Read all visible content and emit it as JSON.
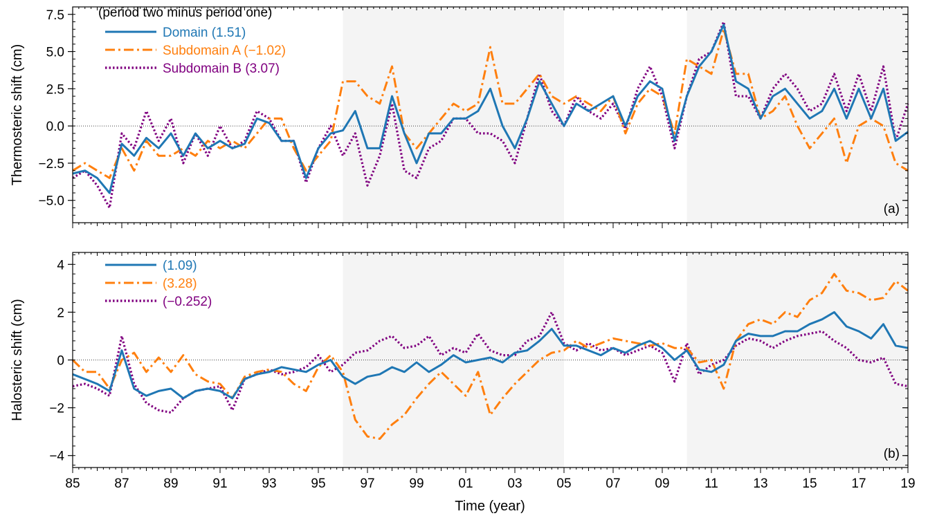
{
  "figure": {
    "xlabel": "Time (year)"
  },
  "colors": {
    "domain": "#1f77b4",
    "sub_a": "#ff7f0e",
    "sub_b": "#800080",
    "shade": "#f4f4f4"
  },
  "chart_data": [
    {
      "id": "a",
      "type": "line",
      "panel_label": "(a)",
      "legend_title": "(period two minus period one)",
      "ylabel": "Thermosteric shift (cm)",
      "xlim": [
        1985,
        2019
      ],
      "ylim": [
        -6.5,
        8.0
      ],
      "yticks": [
        -5.0,
        -2.5,
        0.0,
        2.5,
        5.0,
        7.5
      ],
      "ytick_labels": [
        "−5.0",
        "−2.5",
        "0.0",
        "2.5",
        "5.0",
        "7.5"
      ],
      "shaded_periods": [
        [
          1996,
          2005
        ],
        [
          2010,
          2019
        ]
      ],
      "series": [
        {
          "key": "domain",
          "name": "Domain (1.51)",
          "style": "solid",
          "x": [
            1985,
            1985.5,
            1986,
            1986.5,
            1987,
            1987.5,
            1988,
            1988.5,
            1989,
            1989.5,
            1990,
            1990.5,
            1991,
            1991.5,
            1992,
            1992.5,
            1993,
            1993.5,
            1994,
            1994.5,
            1995,
            1995.5,
            1996,
            1996.5,
            1997,
            1997.5,
            1998,
            1998.5,
            1999,
            1999.5,
            2000,
            2000.5,
            2001,
            2001.5,
            2002,
            2002.5,
            2003,
            2003.5,
            2004,
            2004.5,
            2005,
            2005.5,
            2006,
            2006.5,
            2007,
            2007.5,
            2008,
            2008.5,
            2009,
            2009.5,
            2010,
            2010.5,
            2011,
            2011.5,
            2012,
            2012.5,
            2013,
            2013.5,
            2014,
            2014.5,
            2015,
            2015.5,
            2016,
            2016.5,
            2017,
            2017.5,
            2018,
            2018.5,
            2019
          ],
          "y": [
            -3.2,
            -3.0,
            -3.5,
            -4.5,
            -1.2,
            -2.0,
            -0.8,
            -1.5,
            -0.5,
            -2.0,
            -0.5,
            -1.5,
            -1.0,
            -1.5,
            -1.2,
            0.5,
            0.2,
            -1.0,
            -1.0,
            -3.5,
            -1.5,
            -0.5,
            -0.3,
            1.0,
            -1.5,
            -1.5,
            2.0,
            -0.5,
            -2.5,
            -0.5,
            -0.5,
            0.5,
            0.5,
            1.0,
            2.5,
            0.0,
            -1.5,
            0.5,
            3.0,
            1.5,
            0.0,
            1.5,
            1.0,
            1.5,
            2.0,
            0.0,
            2.0,
            3.0,
            2.5,
            -1.0,
            2.0,
            4.0,
            5.0,
            6.8,
            3.0,
            2.5,
            0.5,
            2.0,
            2.5,
            1.5,
            0.5,
            1.0,
            2.5,
            0.5,
            2.5,
            0.5,
            2.5,
            -1.0,
            -0.4
          ]
        },
        {
          "key": "sub_a",
          "name": "Subdomain A (−1.02)",
          "style": "dashdot",
          "x": [
            1985,
            1985.5,
            1986,
            1986.5,
            1987,
            1987.5,
            1988,
            1988.5,
            1989,
            1989.5,
            1990,
            1990.5,
            1991,
            1991.5,
            1992,
            1992.5,
            1993,
            1993.5,
            1994,
            1994.5,
            1995,
            1995.5,
            1996,
            1996.5,
            1997,
            1997.5,
            1998,
            1998.5,
            1999,
            1999.5,
            2000,
            2000.5,
            2001,
            2001.5,
            2002,
            2002.5,
            2003,
            2003.5,
            2004,
            2004.5,
            2005,
            2005.5,
            2006,
            2006.5,
            2007,
            2007.5,
            2008,
            2008.5,
            2009,
            2009.5,
            2010,
            2010.5,
            2011,
            2011.5,
            2012,
            2012.5,
            2013,
            2013.5,
            2014,
            2014.5,
            2015,
            2015.5,
            2016,
            2016.5,
            2017,
            2017.5,
            2018,
            2018.5,
            2019
          ],
          "y": [
            -3.0,
            -2.5,
            -3.0,
            -3.5,
            -1.5,
            -3.0,
            -1.0,
            -2.0,
            -2.0,
            -1.5,
            -2.0,
            -1.0,
            -1.5,
            -1.0,
            -1.5,
            -0.5,
            0.5,
            0.5,
            -1.5,
            -3.0,
            -2.0,
            -1.0,
            3.0,
            3.0,
            2.0,
            1.5,
            4.0,
            -0.5,
            -1.5,
            -0.5,
            0.5,
            1.5,
            1.0,
            1.5,
            5.3,
            1.5,
            1.5,
            2.5,
            3.5,
            2.0,
            1.5,
            2.0,
            1.5,
            1.0,
            2.0,
            -0.5,
            1.5,
            2.5,
            2.0,
            -0.5,
            4.5,
            4.0,
            3.5,
            6.5,
            3.5,
            3.5,
            0.5,
            1.0,
            2.0,
            0.0,
            -1.5,
            -0.5,
            0.5,
            -2.5,
            0.0,
            0.5,
            0.0,
            -2.5,
            -3.0
          ]
        },
        {
          "key": "sub_b",
          "name": "Subdomain B (3.07)",
          "style": "dotted",
          "x": [
            1985,
            1985.5,
            1986,
            1986.5,
            1987,
            1987.5,
            1988,
            1988.5,
            1989,
            1989.5,
            1990,
            1990.5,
            1991,
            1991.5,
            1992,
            1992.5,
            1993,
            1993.5,
            1994,
            1994.5,
            1995,
            1995.5,
            1996,
            1996.5,
            1997,
            1997.5,
            1998,
            1998.5,
            1999,
            1999.5,
            2000,
            2000.5,
            2001,
            2001.5,
            2002,
            2002.5,
            2003,
            2003.5,
            2004,
            2004.5,
            2005,
            2005.5,
            2006,
            2006.5,
            2007,
            2007.5,
            2008,
            2008.5,
            2009,
            2009.5,
            2010,
            2010.5,
            2011,
            2011.5,
            2012,
            2012.5,
            2013,
            2013.5,
            2014,
            2014.5,
            2015,
            2015.5,
            2016,
            2016.5,
            2017,
            2017.5,
            2018,
            2018.5,
            2019
          ],
          "y": [
            -3.5,
            -3.0,
            -4.0,
            -5.5,
            -0.5,
            -1.5,
            1.0,
            -1.0,
            0.5,
            -2.5,
            -0.5,
            -2.0,
            0.0,
            -1.5,
            -1.0,
            1.0,
            0.5,
            -1.0,
            -1.0,
            -3.8,
            -1.5,
            0.0,
            -2.0,
            -0.5,
            -4.0,
            -2.0,
            1.5,
            -3.0,
            -3.5,
            -1.5,
            -1.0,
            0.5,
            0.5,
            -0.5,
            -0.5,
            -1.0,
            -2.5,
            0.5,
            3.5,
            1.0,
            0.0,
            2.0,
            1.0,
            0.5,
            1.5,
            -0.2,
            2.5,
            4.0,
            2.0,
            -1.5,
            2.0,
            4.5,
            5.0,
            7.0,
            2.0,
            2.0,
            0.5,
            2.5,
            3.5,
            2.5,
            1.0,
            1.5,
            3.5,
            1.0,
            3.5,
            1.0,
            4.0,
            -1.0,
            1.5
          ]
        }
      ]
    },
    {
      "id": "b",
      "type": "line",
      "panel_label": "(b)",
      "ylabel": "Halosteric shift (cm)",
      "xlim": [
        1985,
        2019
      ],
      "ylim": [
        -4.5,
        4.5
      ],
      "yticks": [
        -4,
        -2,
        0,
        2,
        4
      ],
      "ytick_labels": [
        "−4",
        "−2",
        "0",
        "2",
        "4"
      ],
      "shaded_periods": [
        [
          1996,
          2005
        ],
        [
          2010,
          2019
        ]
      ],
      "series": [
        {
          "key": "domain",
          "name": "(1.09)",
          "style": "solid",
          "x": [
            1985,
            1985.5,
            1986,
            1986.5,
            1987,
            1987.5,
            1988,
            1988.5,
            1989,
            1989.5,
            1990,
            1990.5,
            1991,
            1991.5,
            1992,
            1992.5,
            1993,
            1993.5,
            1994,
            1994.5,
            1995,
            1995.5,
            1996,
            1996.5,
            1997,
            1997.5,
            1998,
            1998.5,
            1999,
            1999.5,
            2000,
            2000.5,
            2001,
            2001.5,
            2002,
            2002.5,
            2003,
            2003.5,
            2004,
            2004.5,
            2005,
            2005.5,
            2006,
            2006.5,
            2007,
            2007.5,
            2008,
            2008.5,
            2009,
            2009.5,
            2010,
            2010.5,
            2011,
            2011.5,
            2012,
            2012.5,
            2013,
            2013.5,
            2014,
            2014.5,
            2015,
            2015.5,
            2016,
            2016.5,
            2017,
            2017.5,
            2018,
            2018.5,
            2019
          ],
          "y": [
            -0.6,
            -0.8,
            -1.0,
            -1.3,
            0.4,
            -1.2,
            -1.5,
            -1.3,
            -1.2,
            -1.6,
            -1.3,
            -1.2,
            -1.3,
            -1.6,
            -0.8,
            -0.6,
            -0.5,
            -0.3,
            -0.4,
            -0.5,
            -0.2,
            0.0,
            -0.7,
            -1.0,
            -0.7,
            -0.6,
            -0.3,
            -0.5,
            -0.1,
            -0.5,
            -0.2,
            0.2,
            -0.1,
            0.0,
            0.1,
            -0.1,
            0.3,
            0.4,
            0.8,
            1.3,
            0.6,
            0.6,
            0.4,
            0.2,
            0.5,
            0.3,
            0.6,
            0.8,
            0.5,
            0.0,
            0.4,
            -0.4,
            -0.5,
            -0.2,
            0.8,
            1.1,
            1.0,
            1.0,
            1.2,
            1.2,
            1.5,
            1.7,
            2.0,
            1.4,
            1.2,
            0.9,
            1.5,
            0.6,
            0.5
          ]
        },
        {
          "key": "sub_a",
          "name": "(3.28)",
          "style": "dashdot",
          "x": [
            1985,
            1985.5,
            1986,
            1986.5,
            1987,
            1987.5,
            1988,
            1988.5,
            1989,
            1989.5,
            1990,
            1990.5,
            1991,
            1991.5,
            1992,
            1992.5,
            1993,
            1993.5,
            1994,
            1994.5,
            1995,
            1995.5,
            1996,
            1996.5,
            1997,
            1997.5,
            1998,
            1998.5,
            1999,
            1999.5,
            2000,
            2000.5,
            2001,
            2001.5,
            2002,
            2002.5,
            2003,
            2003.5,
            2004,
            2004.5,
            2005,
            2005.5,
            2006,
            2006.5,
            2007,
            2007.5,
            2008,
            2008.5,
            2009,
            2009.5,
            2010,
            2010.5,
            2011,
            2011.5,
            2012,
            2012.5,
            2013,
            2013.5,
            2014,
            2014.5,
            2015,
            2015.5,
            2016,
            2016.5,
            2017,
            2017.5,
            2018,
            2018.5,
            2019
          ],
          "y": [
            0.0,
            -0.5,
            -0.5,
            -1.2,
            0.0,
            0.3,
            -0.5,
            0.1,
            -0.5,
            0.2,
            -0.6,
            -0.9,
            -1.0,
            -1.6,
            -0.7,
            -0.5,
            -0.4,
            -0.5,
            -1.0,
            -1.3,
            -0.3,
            0.2,
            -0.5,
            -2.5,
            -3.2,
            -3.3,
            -2.7,
            -2.3,
            -1.6,
            -1.0,
            -0.5,
            -1.0,
            -1.5,
            -0.5,
            -2.3,
            -1.6,
            -1.0,
            -0.5,
            0.0,
            0.3,
            0.4,
            0.8,
            0.5,
            0.7,
            0.9,
            0.8,
            0.7,
            0.6,
            0.7,
            0.5,
            0.5,
            -0.1,
            0.0,
            -1.2,
            0.8,
            1.5,
            1.7,
            1.5,
            2.0,
            1.8,
            2.5,
            2.8,
            3.6,
            2.9,
            2.8,
            2.5,
            2.6,
            3.3,
            2.9
          ]
        },
        {
          "key": "sub_b",
          "name": "(−0.252)",
          "style": "dotted",
          "x": [
            1985,
            1985.5,
            1986,
            1986.5,
            1987,
            1987.5,
            1988,
            1988.5,
            1989,
            1989.5,
            1990,
            1990.5,
            1991,
            1991.5,
            1992,
            1992.5,
            1993,
            1993.5,
            1994,
            1994.5,
            1995,
            1995.5,
            1996,
            1996.5,
            1997,
            1997.5,
            1998,
            1998.5,
            1999,
            1999.5,
            2000,
            2000.5,
            2001,
            2001.5,
            2002,
            2002.5,
            2003,
            2003.5,
            2004,
            2004.5,
            2005,
            2005.5,
            2006,
            2006.5,
            2007,
            2007.5,
            2008,
            2008.5,
            2009,
            2009.5,
            2010,
            2010.5,
            2011,
            2011.5,
            2012,
            2012.5,
            2013,
            2013.5,
            2014,
            2014.5,
            2015,
            2015.5,
            2016,
            2016.5,
            2017,
            2017.5,
            2018,
            2018.5,
            2019
          ],
          "y": [
            -1.1,
            -1.0,
            -1.2,
            -1.5,
            1.0,
            -1.0,
            -1.8,
            -2.1,
            -2.2,
            -1.6,
            -1.3,
            -1.2,
            -1.1,
            -2.1,
            -0.8,
            -0.6,
            -0.4,
            -0.6,
            -0.5,
            -0.3,
            0.2,
            -0.5,
            -0.2,
            0.3,
            0.4,
            0.8,
            1.0,
            0.5,
            0.6,
            1.0,
            0.2,
            0.5,
            0.3,
            1.1,
            0.4,
            0.2,
            0.2,
            0.8,
            1.0,
            2.0,
            0.7,
            0.4,
            0.7,
            0.4,
            0.5,
            0.2,
            0.4,
            0.6,
            0.3,
            -0.9,
            0.7,
            -0.6,
            -0.2,
            0.0,
            0.6,
            0.9,
            0.8,
            0.5,
            0.8,
            1.0,
            1.1,
            1.2,
            0.8,
            0.5,
            0.0,
            -0.1,
            0.1,
            -1.0,
            -1.1
          ]
        }
      ]
    }
  ],
  "xaxis": {
    "major_ticks": [
      1985,
      1987,
      1989,
      1991,
      1993,
      1995,
      1997,
      1999,
      2001,
      2003,
      2005,
      2007,
      2009,
      2011,
      2013,
      2015,
      2017,
      2019
    ],
    "major_labels": [
      "85",
      "87",
      "89",
      "91",
      "93",
      "95",
      "97",
      "99",
      "01",
      "03",
      "05",
      "07",
      "09",
      "11",
      "13",
      "15",
      "17",
      "19"
    ]
  }
}
